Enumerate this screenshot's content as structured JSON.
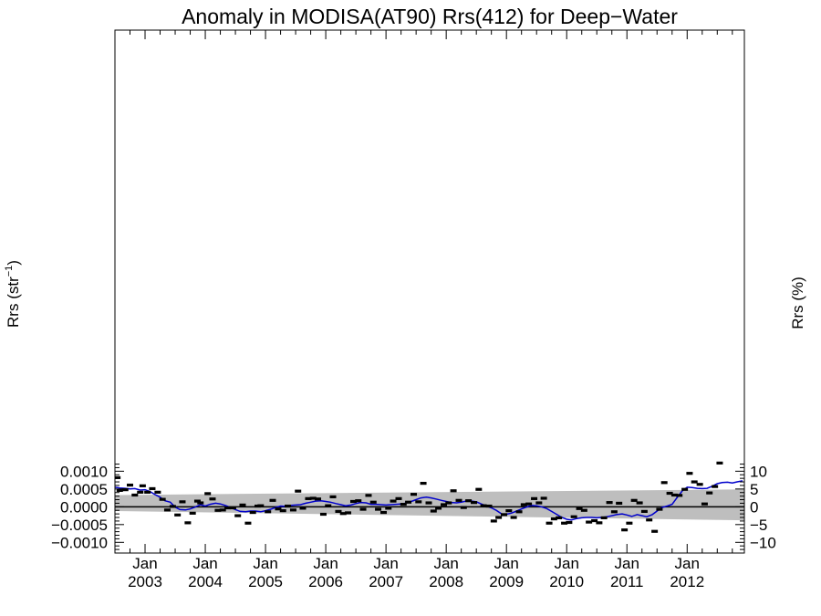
{
  "chart_data": {
    "type": "scatter",
    "title": "Anomaly in MODISA(AT90) Rrs(412) for Deep−Water",
    "ylabel_main": "Rrs (str",
    "ylabel_sup": "−1",
    "ylabel_close": ")",
    "y2label": "Rrs (%)",
    "xlim": [
      2002.5,
      2012.95
    ],
    "ylim": [
      -0.0013,
      0.0134
    ],
    "y2lim": [
      -13,
      134
    ],
    "yticks": [
      {
        "v": 0.001,
        "label": "0.0010"
      },
      {
        "v": 0.0005,
        "label": "0.0005"
      },
      {
        "v": 0.0,
        "label": "0.0000"
      },
      {
        "v": -0.0005,
        "label": "−0.0005"
      },
      {
        "v": -0.001,
        "label": "−0.0010"
      }
    ],
    "y2ticks": [
      {
        "v": 10,
        "label": "10"
      },
      {
        "v": 5,
        "label": "5"
      },
      {
        "v": 0,
        "label": "0"
      },
      {
        "v": -5,
        "label": "−5"
      },
      {
        "v": -10,
        "label": "−10"
      }
    ],
    "xticks": [
      {
        "x": 2003.0,
        "month": "Jan",
        "year": "2003"
      },
      {
        "x": 2004.0,
        "month": "Jan",
        "year": "2004"
      },
      {
        "x": 2005.0,
        "month": "Jan",
        "year": "2005"
      },
      {
        "x": 2006.0,
        "month": "Jan",
        "year": "2006"
      },
      {
        "x": 2007.0,
        "month": "Jan",
        "year": "2007"
      },
      {
        "x": 2008.0,
        "month": "Jan",
        "year": "2008"
      },
      {
        "x": 2009.0,
        "month": "Jan",
        "year": "2009"
      },
      {
        "x": 2010.0,
        "month": "Jan",
        "year": "2010"
      },
      {
        "x": 2011.0,
        "month": "Jan",
        "year": "2011"
      },
      {
        "x": 2012.0,
        "month": "Jan",
        "year": "2012"
      }
    ],
    "band": {
      "upper": [
        [
          2002.5,
          0.00033
        ],
        [
          2012.95,
          0.00049
        ]
      ],
      "lower": [
        [
          2002.5,
          -0.00012
        ],
        [
          2012.95,
          -0.00038
        ]
      ]
    },
    "series": [
      {
        "kind": "points",
        "color": "#000000",
        "points": [
          [
            2002.54,
            0.00082
          ],
          [
            2002.58,
            0.00046
          ],
          [
            2002.67,
            0.00048
          ],
          [
            2002.75,
            0.00061
          ],
          [
            2002.83,
            0.00033
          ],
          [
            2002.92,
            0.00041
          ],
          [
            2002.96,
            0.00059
          ],
          [
            2003.04,
            0.00041
          ],
          [
            2003.12,
            0.00051
          ],
          [
            2003.21,
            0.00041
          ],
          [
            2003.29,
            0.00021
          ],
          [
            2003.37,
            -9e-05
          ],
          [
            2003.46,
            1e-05
          ],
          [
            2003.54,
            -0.00023
          ],
          [
            2003.62,
            0.00014
          ],
          [
            2003.71,
            -0.00045
          ],
          [
            2003.79,
            -0.00018
          ],
          [
            2003.87,
            0.00016
          ],
          [
            2003.92,
            0.00011
          ],
          [
            2004.04,
            0.00037
          ],
          [
            2004.12,
            0.00022
          ],
          [
            2004.21,
            -0.0001
          ],
          [
            2004.29,
            -9e-05
          ],
          [
            2004.37,
            -3e-05
          ],
          [
            2004.46,
            -3e-05
          ],
          [
            2004.54,
            -0.00025
          ],
          [
            2004.62,
            5e-05
          ],
          [
            2004.71,
            -0.00046
          ],
          [
            2004.79,
            -0.00016
          ],
          [
            2004.87,
            2e-05
          ],
          [
            2004.92,
            3e-05
          ],
          [
            2005.04,
            -0.00014
          ],
          [
            2005.12,
            0.00018
          ],
          [
            2005.21,
            -6e-05
          ],
          [
            2005.29,
            -0.00011
          ],
          [
            2005.37,
            2e-05
          ],
          [
            2005.46,
            -9e-05
          ],
          [
            2005.54,
            0.00044
          ],
          [
            2005.62,
            -4e-05
          ],
          [
            2005.71,
            0.00023
          ],
          [
            2005.79,
            0.00024
          ],
          [
            2005.87,
            0.00022
          ],
          [
            2005.96,
            -0.00021
          ],
          [
            2006.04,
            3e-05
          ],
          [
            2006.12,
            0.00028
          ],
          [
            2006.21,
            -0.00013
          ],
          [
            2006.29,
            -0.00019
          ],
          [
            2006.37,
            -0.00017
          ],
          [
            2006.46,
            0.00015
          ],
          [
            2006.54,
            0.00017
          ],
          [
            2006.62,
            -7e-05
          ],
          [
            2006.71,
            0.00032
          ],
          [
            2006.79,
            0.00013
          ],
          [
            2006.87,
            -7e-05
          ],
          [
            2006.96,
            -0.00016
          ],
          [
            2007.04,
            -4e-05
          ],
          [
            2007.12,
            0.00016
          ],
          [
            2007.21,
            0.00023
          ],
          [
            2007.29,
            7e-05
          ],
          [
            2007.37,
            0.00013
          ],
          [
            2007.46,
            0.00035
          ],
          [
            2007.54,
            0.00014
          ],
          [
            2007.62,
            0.00066
          ],
          [
            2007.71,
            0.00011
          ],
          [
            2007.79,
            -0.00012
          ],
          [
            2007.87,
            -4e-05
          ],
          [
            2007.96,
            6e-05
          ],
          [
            2008.04,
            0.00011
          ],
          [
            2008.12,
            0.00045
          ],
          [
            2008.21,
            0.00018
          ],
          [
            2008.29,
            -2e-05
          ],
          [
            2008.37,
            0.00017
          ],
          [
            2008.46,
            0.00012
          ],
          [
            2008.54,
            0.00049
          ],
          [
            2008.62,
            3e-05
          ],
          [
            2008.71,
            2e-05
          ],
          [
            2008.79,
            -0.0004
          ],
          [
            2008.87,
            -0.0003
          ],
          [
            2008.96,
            -0.00022
          ],
          [
            2009.04,
            -0.00011
          ],
          [
            2009.12,
            -0.0003
          ],
          [
            2009.21,
            -0.00014
          ],
          [
            2009.29,
            6e-05
          ],
          [
            2009.37,
            8e-05
          ],
          [
            2009.46,
            0.00023
          ],
          [
            2009.54,
            0.00011
          ],
          [
            2009.62,
            0.00024
          ],
          [
            2009.71,
            -0.00046
          ],
          [
            2009.79,
            -0.00034
          ],
          [
            2009.87,
            -0.00031
          ],
          [
            2009.96,
            -0.00046
          ],
          [
            2010.04,
            -0.00044
          ],
          [
            2010.12,
            -0.00028
          ],
          [
            2010.21,
            -5e-05
          ],
          [
            2010.29,
            -0.0001
          ],
          [
            2010.37,
            -0.00043
          ],
          [
            2010.46,
            -0.00039
          ],
          [
            2010.54,
            -0.00045
          ],
          [
            2010.62,
            -0.00031
          ],
          [
            2010.71,
            0.00012
          ],
          [
            2010.79,
            -0.00014
          ],
          [
            2010.87,
            0.0001
          ],
          [
            2010.96,
            -0.00065
          ],
          [
            2011.04,
            -0.00046
          ],
          [
            2011.12,
            0.00018
          ],
          [
            2011.21,
            0.00011
          ],
          [
            2011.29,
            -0.00013
          ],
          [
            2011.37,
            -0.00037
          ],
          [
            2011.46,
            -0.00069
          ],
          [
            2011.54,
            -7e-05
          ],
          [
            2011.62,
            0.00068
          ],
          [
            2011.71,
            0.00038
          ],
          [
            2011.79,
            0.00033
          ],
          [
            2011.87,
            0.00032
          ],
          [
            2011.96,
            0.00049
          ],
          [
            2012.04,
            0.00094
          ],
          [
            2012.12,
            0.0007
          ],
          [
            2012.21,
            0.00063
          ],
          [
            2012.29,
            8e-05
          ],
          [
            2012.37,
            0.00039
          ],
          [
            2012.46,
            0.00057
          ],
          [
            2012.54,
            0.00123
          ]
        ]
      },
      {
        "kind": "line",
        "color": "#0000cc",
        "points": [
          [
            2002.5,
            0.00055
          ],
          [
            2002.58,
            0.00053
          ],
          [
            2002.67,
            0.00052
          ],
          [
            2002.75,
            0.0005
          ],
          [
            2002.83,
            0.00051
          ],
          [
            2002.92,
            0.00047
          ],
          [
            2003.0,
            0.00048
          ],
          [
            2003.08,
            0.00043
          ],
          [
            2003.17,
            0.00034
          ],
          [
            2003.25,
            0.00027
          ],
          [
            2003.33,
            0.00017
          ],
          [
            2003.42,
            0.00013
          ],
          [
            2003.5,
            -1e-05
          ],
          [
            2003.58,
            -8e-05
          ],
          [
            2003.67,
            -9e-05
          ],
          [
            2003.75,
            -6e-05
          ],
          [
            2003.83,
            -1e-05
          ],
          [
            2003.92,
            6e-05
          ],
          [
            2004.0,
            2e-05
          ],
          [
            2004.08,
            7e-05
          ],
          [
            2004.17,
            0.0001
          ],
          [
            2004.25,
            8e-05
          ],
          [
            2004.33,
            4e-05
          ],
          [
            2004.42,
            -2e-05
          ],
          [
            2004.5,
            -8e-05
          ],
          [
            2004.58,
            -0.00013
          ],
          [
            2004.67,
            -0.00014
          ],
          [
            2004.75,
            -0.00012
          ],
          [
            2004.83,
            -0.00012
          ],
          [
            2004.92,
            -0.00014
          ],
          [
            2005.0,
            -0.00011
          ],
          [
            2005.08,
            -7e-05
          ],
          [
            2005.17,
            -2e-05
          ],
          [
            2005.25,
            2e-05
          ],
          [
            2005.33,
            1e-05
          ],
          [
            2005.42,
            4e-05
          ],
          [
            2005.5,
            5e-05
          ],
          [
            2005.58,
            6e-05
          ],
          [
            2005.67,
            0.0001
          ],
          [
            2005.75,
            0.00013
          ],
          [
            2005.83,
            0.00016
          ],
          [
            2005.92,
            0.00017
          ],
          [
            2006.0,
            0.00015
          ],
          [
            2006.08,
            0.00013
          ],
          [
            2006.17,
            9e-05
          ],
          [
            2006.25,
            6e-05
          ],
          [
            2006.33,
            3e-05
          ],
          [
            2006.42,
            5e-05
          ],
          [
            2006.5,
            9e-05
          ],
          [
            2006.58,
            0.00012
          ],
          [
            2006.67,
            0.00011
          ],
          [
            2006.75,
            7e-05
          ],
          [
            2006.83,
            7e-05
          ],
          [
            2006.92,
            6e-05
          ],
          [
            2007.0,
            5e-05
          ],
          [
            2007.08,
            6e-05
          ],
          [
            2007.17,
            7e-05
          ],
          [
            2007.25,
            8e-05
          ],
          [
            2007.33,
            0.0001
          ],
          [
            2007.42,
            0.00015
          ],
          [
            2007.5,
            0.0002
          ],
          [
            2007.58,
            0.00025
          ],
          [
            2007.67,
            0.00027
          ],
          [
            2007.75,
            0.00025
          ],
          [
            2007.83,
            0.00022
          ],
          [
            2007.92,
            0.00018
          ],
          [
            2008.0,
            0.00015
          ],
          [
            2008.08,
            0.00012
          ],
          [
            2008.17,
            0.00011
          ],
          [
            2008.25,
            0.00013
          ],
          [
            2008.33,
            0.00016
          ],
          [
            2008.42,
            0.00016
          ],
          [
            2008.5,
            0.00014
          ],
          [
            2008.58,
            8e-05
          ],
          [
            2008.67,
            2e-05
          ],
          [
            2008.75,
            -3e-05
          ],
          [
            2008.83,
            -0.0001
          ],
          [
            2008.92,
            -0.0002
          ],
          [
            2009.0,
            -0.00021
          ],
          [
            2009.08,
            -0.00018
          ],
          [
            2009.17,
            -0.00012
          ],
          [
            2009.25,
            -6e-05
          ],
          [
            2009.33,
            -1e-05
          ],
          [
            2009.42,
            4e-05
          ],
          [
            2009.5,
            3e-05
          ],
          [
            2009.58,
            0.0
          ],
          [
            2009.67,
            -5e-05
          ],
          [
            2009.75,
            -0.00013
          ],
          [
            2009.83,
            -0.00021
          ],
          [
            2009.92,
            -0.0003
          ],
          [
            2010.0,
            -0.00035
          ],
          [
            2010.08,
            -0.00037
          ],
          [
            2010.17,
            -0.00033
          ],
          [
            2010.25,
            -0.00031
          ],
          [
            2010.33,
            -0.0003
          ],
          [
            2010.42,
            -0.0003
          ],
          [
            2010.5,
            -0.00031
          ],
          [
            2010.58,
            -0.0003
          ],
          [
            2010.67,
            -0.00028
          ],
          [
            2010.75,
            -0.00025
          ],
          [
            2010.83,
            -0.00022
          ],
          [
            2010.92,
            -0.0002
          ],
          [
            2011.0,
            -0.00023
          ],
          [
            2011.08,
            -0.00027
          ],
          [
            2011.17,
            -0.00022
          ],
          [
            2011.25,
            -0.00025
          ],
          [
            2011.33,
            -0.00028
          ],
          [
            2011.42,
            -0.00022
          ],
          [
            2011.5,
            -0.00012
          ],
          [
            2011.58,
            -2e-05
          ],
          [
            2011.67,
            2e-05
          ],
          [
            2011.75,
            7e-05
          ],
          [
            2011.83,
            0.00025
          ],
          [
            2011.92,
            0.00045
          ],
          [
            2012.0,
            0.00055
          ],
          [
            2012.08,
            0.00054
          ],
          [
            2012.17,
            0.00052
          ],
          [
            2012.25,
            0.00051
          ],
          [
            2012.33,
            0.00052
          ],
          [
            2012.42,
            0.00058
          ],
          [
            2012.5,
            0.00065
          ],
          [
            2012.58,
            0.00068
          ],
          [
            2012.67,
            0.00069
          ],
          [
            2012.75,
            0.00067
          ],
          [
            2012.83,
            0.0007
          ],
          [
            2012.92,
            0.00073
          ]
        ]
      }
    ]
  }
}
